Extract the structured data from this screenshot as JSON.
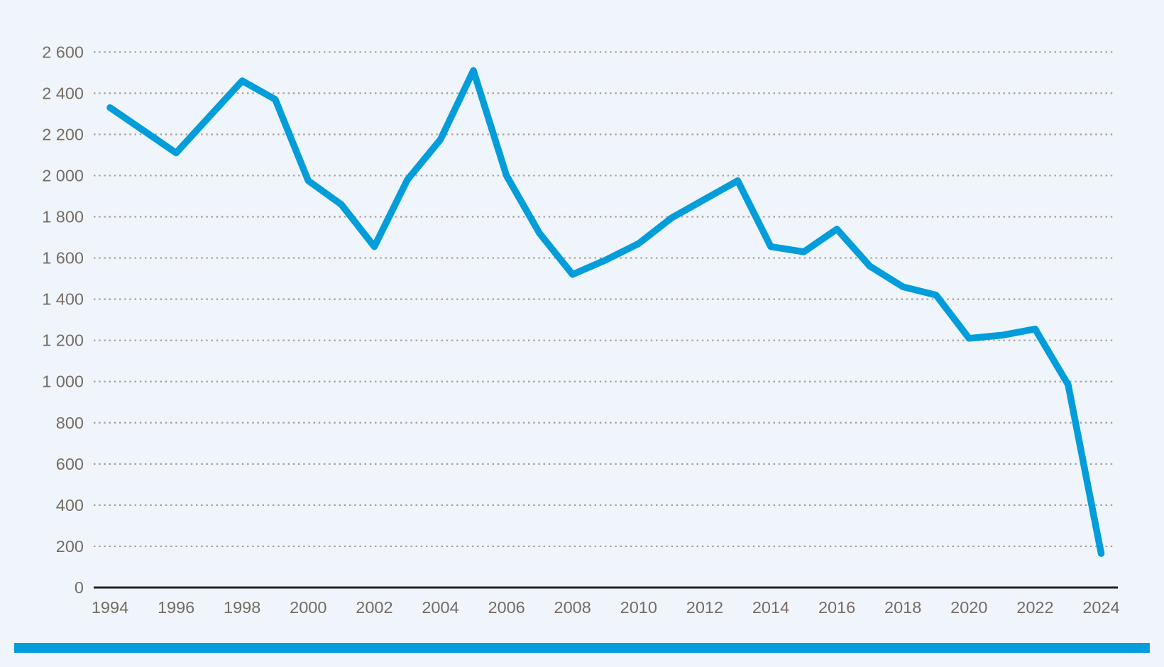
{
  "page": {
    "background_color": "#eff5fa",
    "accent_bar_color": "#029dda"
  },
  "chart_data": {
    "type": "line",
    "title": "",
    "xlabel": "",
    "ylabel": "",
    "legend": "none",
    "x": [
      1994,
      1995,
      1996,
      1997,
      1998,
      1999,
      2000,
      2001,
      2002,
      2003,
      2004,
      2005,
      2006,
      2007,
      2008,
      2009,
      2010,
      2011,
      2012,
      2013,
      2014,
      2015,
      2016,
      2017,
      2018,
      2019,
      2020,
      2021,
      2022,
      2023,
      2024
    ],
    "values": [
      2330,
      2220,
      2110,
      2285,
      2460,
      2370,
      1975,
      1860,
      1655,
      1980,
      2175,
      2510,
      2000,
      1720,
      1520,
      1590,
      1670,
      1795,
      1885,
      1975,
      1655,
      1630,
      1740,
      1560,
      1460,
      1420,
      1210,
      1225,
      1255,
      985,
      165
    ],
    "xlim": [
      1994,
      2024
    ],
    "ylim": [
      0,
      2600
    ],
    "y_tick_step": 200,
    "y_tick_values": [
      0,
      200,
      400,
      600,
      800,
      1000,
      1200,
      1400,
      1600,
      1800,
      2000,
      2200,
      2400,
      2600
    ],
    "y_tick_labels": [
      "0",
      "200",
      "400",
      "600",
      "800",
      "1 000",
      "1 200",
      "1 400",
      "1 600",
      "1 800",
      "2 000",
      "2 200",
      "2 400",
      "2 600"
    ],
    "x_tick_values": [
      1994,
      1996,
      1998,
      2000,
      2002,
      2004,
      2006,
      2008,
      2010,
      2012,
      2014,
      2016,
      2018,
      2020,
      2022,
      2024
    ],
    "x_tick_labels": [
      "1994",
      "1996",
      "1998",
      "2000",
      "2002",
      "2004",
      "2006",
      "2008",
      "2010",
      "2012",
      "2014",
      "2016",
      "2018",
      "2020",
      "2022",
      "2024"
    ],
    "grid": "horizontal-dotted",
    "line_color": "#029dda",
    "line_width": 9.5,
    "gridline_color": "#a59e97",
    "axis_line_color": "#26221f",
    "tick_label_color": "#756c64"
  }
}
